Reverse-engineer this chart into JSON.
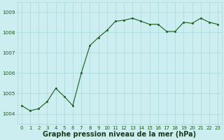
{
  "x": [
    0,
    1,
    2,
    3,
    4,
    5,
    6,
    7,
    8,
    9,
    10,
    11,
    12,
    13,
    14,
    15,
    16,
    17,
    18,
    19,
    20,
    21,
    22,
    23
  ],
  "y": [
    1004.4,
    1004.15,
    1004.25,
    1004.6,
    1005.25,
    1004.85,
    1004.4,
    1006.0,
    1007.35,
    1007.75,
    1008.1,
    1008.55,
    1008.6,
    1008.7,
    1008.55,
    1008.4,
    1008.4,
    1008.05,
    1008.05,
    1008.5,
    1008.45,
    1008.7,
    1008.5,
    1008.4
  ],
  "ylim": [
    1003.5,
    1009.5
  ],
  "xlim": [
    -0.5,
    23.5
  ],
  "yticks": [
    1004,
    1005,
    1006,
    1007,
    1008,
    1009
  ],
  "xticks": [
    0,
    1,
    2,
    3,
    4,
    5,
    6,
    7,
    8,
    9,
    10,
    11,
    12,
    13,
    14,
    15,
    16,
    17,
    18,
    19,
    20,
    21,
    22,
    23
  ],
  "xlabel": "Graphe pression niveau de la mer (hPa)",
  "line_color": "#1a5c1a",
  "marker_color": "#1a5c1a",
  "bg_color": "#cdeef0",
  "grid_color": "#a8d8dc",
  "tick_label_color": "#1a5c1a",
  "xlabel_color": "#1a3a1a",
  "tick_fontsize": 5.0,
  "xlabel_fontsize": 7.0,
  "ytick_fontsize": 5.2
}
